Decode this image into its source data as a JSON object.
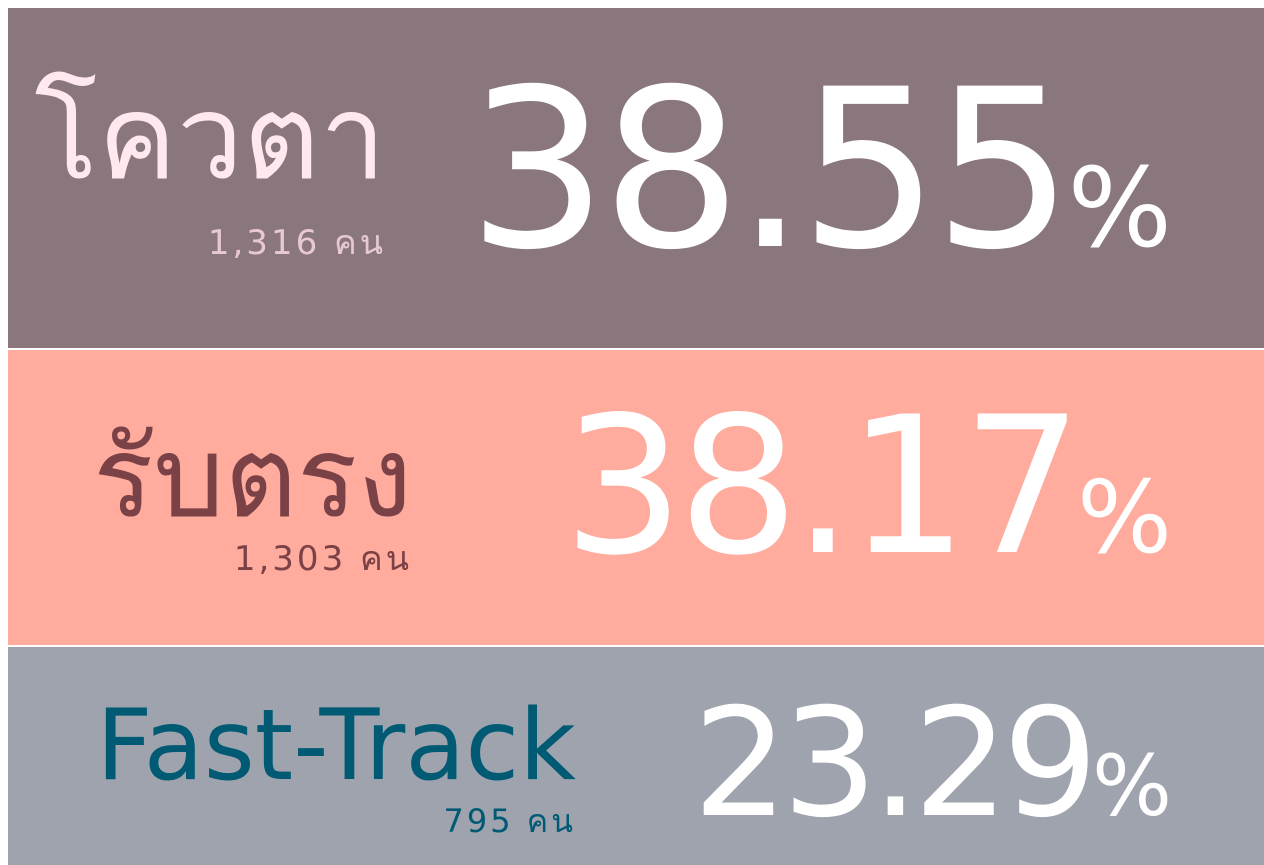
{
  "rows": [
    {
      "label": "โควตา",
      "count": "1,316 คน",
      "percent": "38.55",
      "unit": "%"
    },
    {
      "label": "รับตรง",
      "count": "1,303 คน",
      "percent": "38.17",
      "unit": "%"
    },
    {
      "label": "Fast-Track",
      "count": "795 คน",
      "percent": "23.29",
      "unit": "%"
    }
  ]
}
